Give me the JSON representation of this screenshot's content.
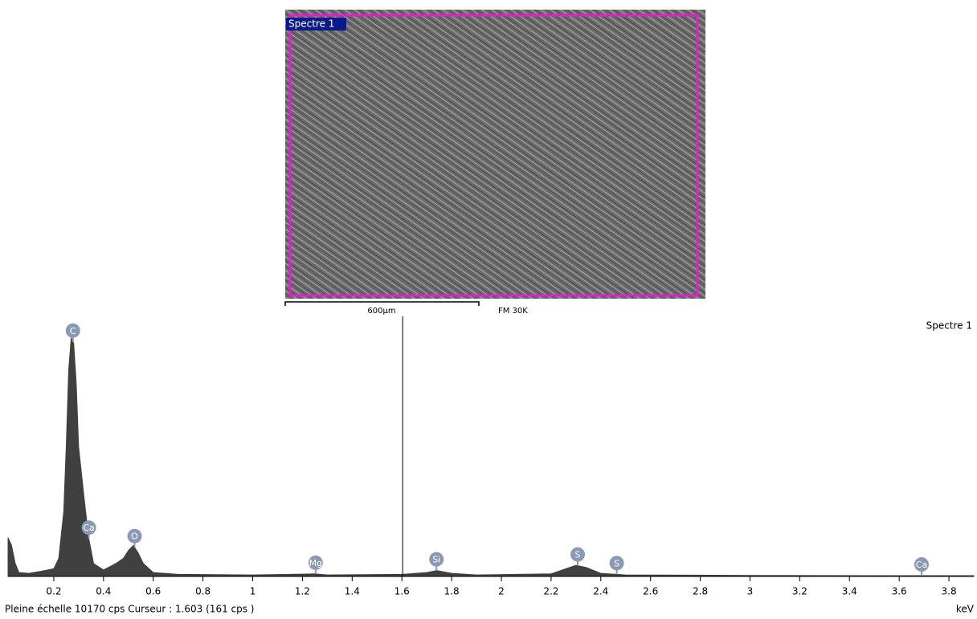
{
  "image": {
    "label": "Spectre  1",
    "scale_bar": "600µm",
    "magnification": "FM 30K"
  },
  "chart_data": {
    "type": "spectrum",
    "legend": "Spectre  1",
    "x_unit": "keV",
    "footer": "Pleine échelle 10170 cps  Curseur : 1.603  (161 cps )",
    "color": "#404040",
    "x": [
      0.016,
      0.03,
      0.045,
      0.06,
      0.1,
      0.15,
      0.2,
      0.22,
      0.24,
      0.25,
      0.26,
      0.27,
      0.28,
      0.29,
      0.3,
      0.32,
      0.34,
      0.36,
      0.4,
      0.45,
      0.48,
      0.5,
      0.52,
      0.54,
      0.56,
      0.6,
      0.7,
      1.0,
      1.25,
      1.3,
      1.6,
      1.7,
      1.74,
      1.8,
      1.9,
      2.2,
      2.26,
      2.3,
      2.34,
      2.4,
      2.5,
      3.0,
      3.5,
      3.9
    ],
    "values": [
      1500,
      1200,
      500,
      150,
      120,
      200,
      300,
      700,
      2500,
      5000,
      8000,
      9200,
      9000,
      7500,
      5000,
      3200,
      1500,
      500,
      250,
      500,
      700,
      1000,
      1200,
      900,
      500,
      150,
      80,
      60,
      100,
      60,
      80,
      150,
      230,
      120,
      60,
      100,
      300,
      430,
      350,
      120,
      60,
      40,
      30,
      30
    ],
    "peaks": [
      {
        "label": "C",
        "x": 0.277
      },
      {
        "label": "Ca",
        "x": 0.341
      },
      {
        "label": "O",
        "x": 0.525
      },
      {
        "label": "Mg",
        "x": 1.253
      },
      {
        "label": "Si",
        "x": 1.739
      },
      {
        "label": "S",
        "x": 2.307
      },
      {
        "label": "S",
        "x": 2.464
      },
      {
        "label": "Ca",
        "x": 3.69
      }
    ],
    "cursor": 1.603,
    "xlim": [
      0.016,
      3.9
    ],
    "ylim": [
      0,
      10170
    ],
    "xticks": [
      0.2,
      0.4,
      0.6,
      0.8,
      1,
      1.2,
      1.4,
      1.6,
      1.8,
      2,
      2.2,
      2.4,
      2.6,
      2.8,
      3,
      3.2,
      3.4,
      3.6,
      3.8
    ]
  }
}
